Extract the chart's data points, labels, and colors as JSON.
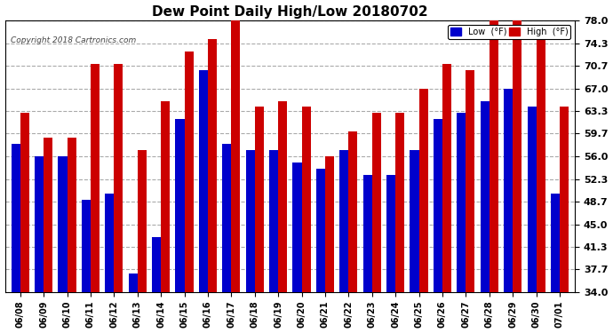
{
  "title": "Dew Point Daily High/Low 20180702",
  "copyright": "Copyright 2018 Cartronics.com",
  "dates": [
    "06/08",
    "06/09",
    "06/10",
    "06/11",
    "06/12",
    "06/13",
    "06/14",
    "06/15",
    "06/16",
    "06/17",
    "06/18",
    "06/19",
    "06/20",
    "06/21",
    "06/22",
    "06/23",
    "06/24",
    "06/25",
    "06/26",
    "06/27",
    "06/28",
    "06/29",
    "06/30",
    "07/01"
  ],
  "low": [
    58,
    56,
    56,
    49,
    50,
    37,
    43,
    62,
    70,
    58,
    57,
    57,
    55,
    54,
    57,
    53,
    53,
    57,
    62,
    63,
    65,
    67,
    64,
    50
  ],
  "high": [
    63,
    59,
    59,
    71,
    71,
    57,
    65,
    73,
    75,
    78,
    64,
    65,
    64,
    56,
    60,
    63,
    63,
    67,
    71,
    70,
    78,
    78,
    75,
    64
  ],
  "low_color": "#0000cc",
  "high_color": "#cc0000",
  "bg_color": "#ffffff",
  "plot_bg_color": "#ffffff",
  "grid_color": "#aaaaaa",
  "title_color": "#000000",
  "ylabel_values": [
    34.0,
    37.7,
    41.3,
    45.0,
    48.7,
    52.3,
    56.0,
    59.7,
    63.3,
    67.0,
    70.7,
    74.3,
    78.0
  ],
  "ymin": 34.0,
  "ymax": 78.0,
  "legend_low_label": "Low  (°F)",
  "legend_high_label": "High  (°F)"
}
